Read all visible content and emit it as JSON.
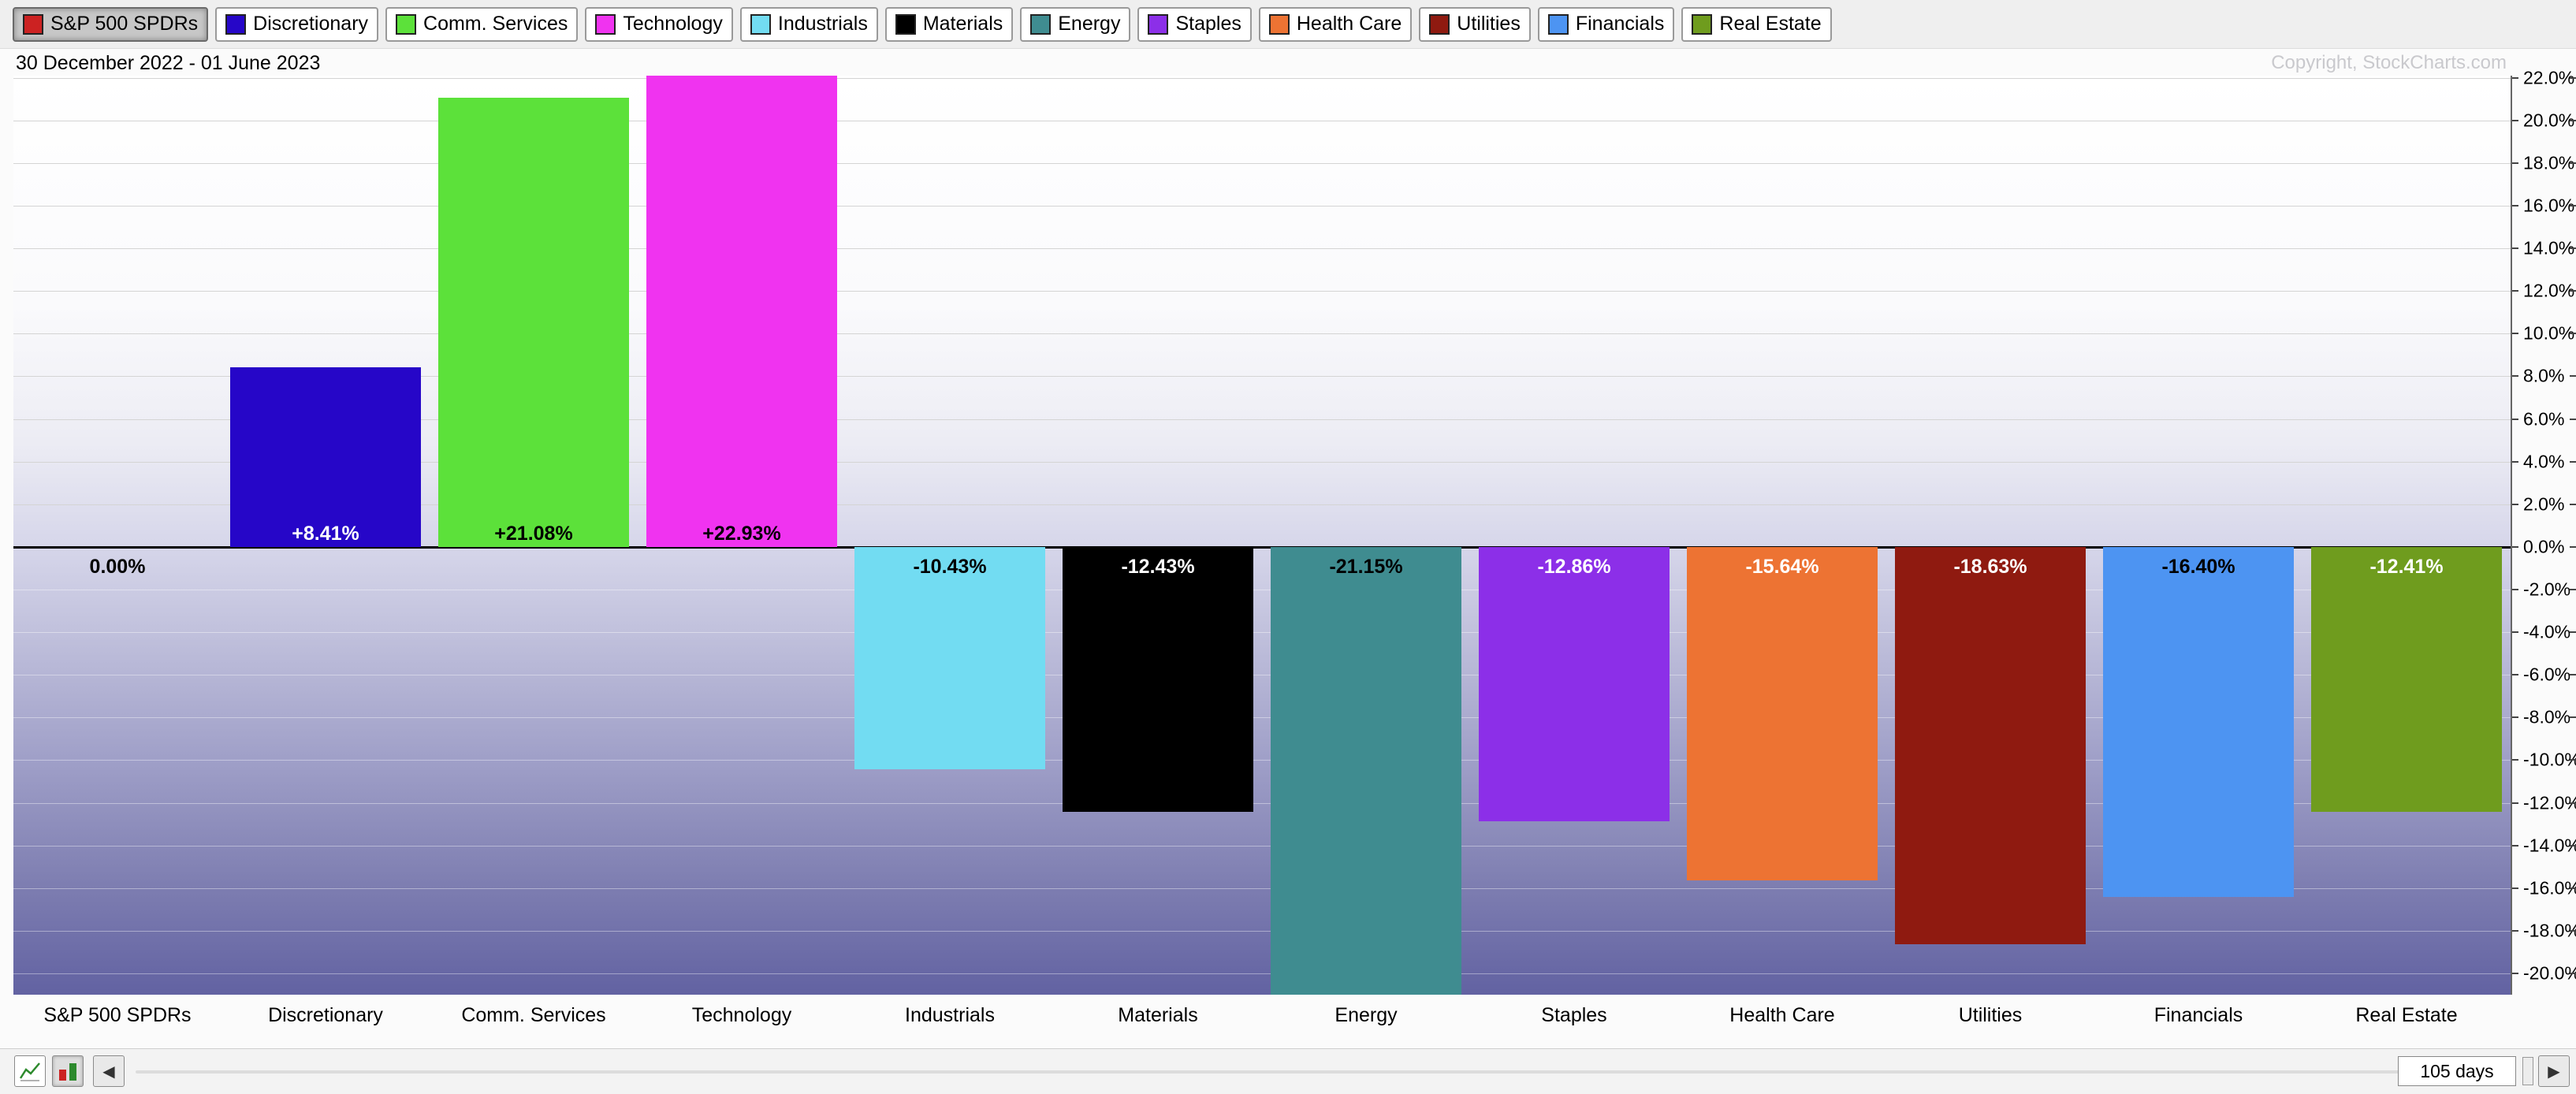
{
  "legend": {
    "buttons": [
      {
        "label": "S&P 500 SPDRs",
        "color": "#cc2222",
        "pressed": true
      },
      {
        "label": "Discretionary",
        "color": "#2606c8",
        "pressed": false
      },
      {
        "label": "Comm. Services",
        "color": "#5ce13a",
        "pressed": false
      },
      {
        "label": "Technology",
        "color": "#f033f0",
        "pressed": false
      },
      {
        "label": "Industrials",
        "color": "#72dcf2",
        "pressed": false
      },
      {
        "label": "Materials",
        "color": "#000000",
        "pressed": false
      },
      {
        "label": "Energy",
        "color": "#3f8c90",
        "pressed": false
      },
      {
        "label": "Staples",
        "color": "#8c2fe8",
        "pressed": false
      },
      {
        "label": "Health Care",
        "color": "#ed7333",
        "pressed": false
      },
      {
        "label": "Utilities",
        "color": "#8f1a10",
        "pressed": false
      },
      {
        "label": "Financials",
        "color": "#4d94f2",
        "pressed": false
      },
      {
        "label": "Real Estate",
        "color": "#6f9c1e",
        "pressed": false
      }
    ]
  },
  "header": {
    "date_range": "30 December 2022 - 01 June 2023",
    "copyright": "Copyright, StockCharts.com"
  },
  "chart_data": {
    "type": "bar",
    "title": "",
    "period_label": "30 December 2022 - 01 June 2023",
    "categories": [
      "S&P 500 SPDRs",
      "Discretionary",
      "Comm. Services",
      "Technology",
      "Industrials",
      "Materials",
      "Energy",
      "Staples",
      "Health Care",
      "Utilities",
      "Financials",
      "Real Estate"
    ],
    "values": [
      0.0,
      8.41,
      21.08,
      22.93,
      -10.43,
      -12.43,
      -21.15,
      -12.86,
      -15.64,
      -18.63,
      -16.4,
      -12.41
    ],
    "value_labels": [
      "0.00%",
      "+8.41%",
      "+21.08%",
      "+22.93%",
      "-10.43%",
      "-12.43%",
      "-21.15%",
      "-12.86%",
      "-15.64%",
      "-18.63%",
      "-16.40%",
      "-12.41%"
    ],
    "bar_colors": [
      "#cc2222",
      "#2606c8",
      "#5ce13a",
      "#f033f0",
      "#72dcf2",
      "#000000",
      "#3f8c90",
      "#8c2fe8",
      "#ed7333",
      "#8f1a10",
      "#4d94f2",
      "#6f9c1e"
    ],
    "label_text_colors": [
      "#000000",
      "#ffffff",
      "#000000",
      "#000000",
      "#000000",
      "#ffffff",
      "#000000",
      "#ffffff",
      "#ffffff",
      "#ffffff",
      "#000000",
      "#ffffff"
    ],
    "baseline": 0,
    "ylabel": "",
    "xlabel": "",
    "ylim": [
      -21.0,
      22.1
    ],
    "ytick_values": [
      22,
      20,
      18,
      16,
      14,
      12,
      10,
      8,
      6,
      4,
      2,
      0,
      -2,
      -4,
      -6,
      -8,
      -10,
      -12,
      -14,
      -16,
      -18,
      -20
    ],
    "ytick_labels": [
      "22.0%",
      "20.0%",
      "18.0%",
      "16.0%",
      "14.0%",
      "12.0%",
      "10.0%",
      "8.0%",
      "6.0%",
      "4.0%",
      "2.0%",
      "0.0%",
      "-2.0%",
      "-4.0%",
      "-6.0%",
      "-8.0%",
      "-10.0%",
      "-12.0%",
      "-14.0%",
      "-16.0%",
      "-18.0%",
      "-20.0%"
    ],
    "grid": true,
    "legend_position": "top"
  },
  "toolbar": {
    "left_arrow": "◀",
    "right_arrow": "▶",
    "days_value": "105 days"
  }
}
